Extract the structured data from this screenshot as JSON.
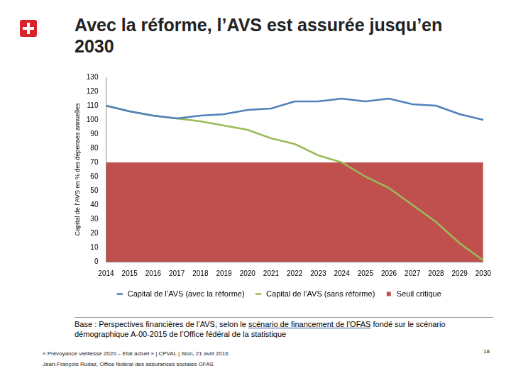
{
  "chart_data": {
    "type": "line",
    "title": "Avec la réforme, l’AVS est assurée jusqu’en 2030",
    "y_label": "Capital de l’AVS en % des dépenses annuelles",
    "categories": [
      "2014",
      "2015",
      "2016",
      "2017",
      "2018",
      "2019",
      "2020",
      "2021",
      "2022",
      "2023",
      "2024",
      "2025",
      "2026",
      "2027",
      "2028",
      "2029",
      "2030"
    ],
    "series": [
      {
        "name": "Seuil critique",
        "type": "area",
        "color": "#c0504d",
        "values": [
          70,
          70,
          70,
          70,
          70,
          70,
          70,
          70,
          70,
          70,
          70,
          70,
          70,
          70,
          70,
          70,
          70
        ]
      },
      {
        "name": "Capital de l’AVS (sans réforme)",
        "type": "line",
        "color": "#9bbb59",
        "values": [
          110,
          106,
          103,
          101,
          99,
          96,
          93,
          87,
          83,
          75,
          70,
          60,
          52,
          40,
          28,
          13,
          1
        ]
      },
      {
        "name": "Capital de l’AVS (avec la réforme)",
        "type": "line",
        "color": "#4f81bd",
        "values": [
          110,
          106,
          103,
          101,
          103,
          104,
          107,
          108,
          113,
          113,
          115,
          113,
          115,
          111,
          110,
          104,
          100
        ]
      }
    ],
    "ylim": [
      0,
      130
    ],
    "yticks": [
      0,
      10,
      20,
      30,
      40,
      50,
      60,
      70,
      80,
      90,
      100,
      110,
      120,
      130
    ],
    "grid": false,
    "legend": "bottom"
  },
  "source": {
    "before": "Base : Perspectives financières de l’AVS, selon le ",
    "link": "scénario de financement de l’OFAS",
    "after": " fondé sur le scénario démographique A-00-2015 de l’Office fédéral de la statistique"
  },
  "footer": [
    "« Prévoyance vieillesse 2020 – Etat actuel » | CPVAL | Sion, 21 avril 2016",
    "Jean-François Rudaz, Office fédéral des assurances sociales OFAS"
  ],
  "page_number": "18"
}
